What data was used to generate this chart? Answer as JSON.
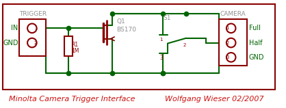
{
  "bg": "#ffffff",
  "border": "#8b0000",
  "wire": "#006400",
  "comp": "#8b0000",
  "gray": "#909090",
  "green": "#006400",
  "red": "#cc1111",
  "title": "Minolta Camera Trigger Interface",
  "author": "Wolfgang Wieser 02/2007",
  "trigger_label": "TRIGGER",
  "camera_label": "CAMERA",
  "in_label": "IN",
  "gnd_label": "GND",
  "full_label": "Full",
  "half_label": "Half",
  "gnd2_label": "GND",
  "q1_label": "Q1",
  "bs170_label": "BS170",
  "r1_label": "R1",
  "r1_val": "1M",
  "s1_label": "S1",
  "figw": 4.18,
  "figh": 1.58,
  "dpi": 100
}
